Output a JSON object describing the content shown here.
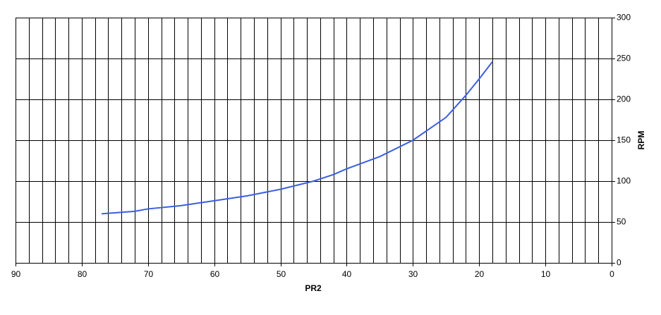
{
  "chart_data": {
    "type": "line",
    "x_label": "PR2",
    "y_label": "RPM",
    "xlim": [
      90,
      0
    ],
    "ylim": [
      0,
      300
    ],
    "xticks": [
      90,
      80,
      70,
      60,
      50,
      40,
      30,
      20,
      10,
      0
    ],
    "xminorticks": [
      88,
      86,
      84,
      82,
      78,
      76,
      74,
      72,
      68,
      66,
      64,
      62,
      58,
      56,
      54,
      52,
      48,
      46,
      44,
      42,
      38,
      36,
      34,
      32,
      28,
      26,
      24,
      22,
      18,
      16,
      14,
      12,
      8,
      6,
      4,
      2
    ],
    "yticks": [
      0,
      50,
      100,
      150,
      200,
      250,
      300
    ],
    "grid": true,
    "series": [
      {
        "color": "#3a5ee0",
        "x": [
          77,
          72,
          70,
          65,
          60,
          55,
          50,
          45,
          42,
          40,
          35,
          30,
          25,
          22,
          20,
          18
        ],
        "values": [
          60,
          63,
          66,
          70,
          76,
          82,
          90,
          100,
          108,
          115,
          130,
          150,
          178,
          205,
          225,
          246
        ]
      }
    ]
  }
}
